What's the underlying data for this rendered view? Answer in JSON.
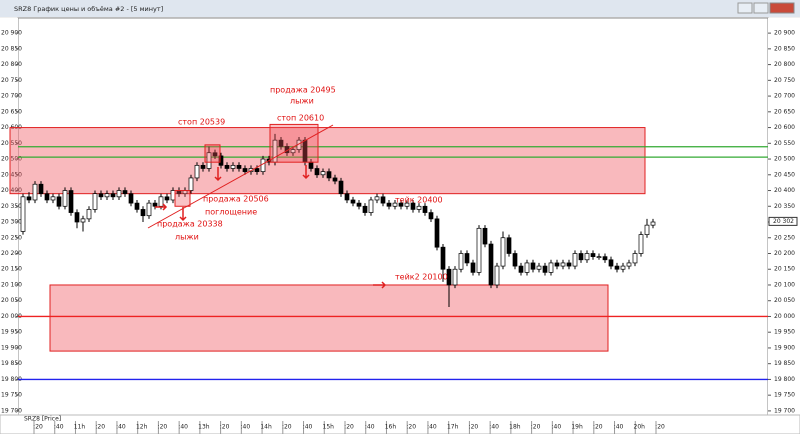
{
  "window_title": "SRZ8 График цены и объёма #2 - [5 минут]",
  "chart_data": {
    "type": "candlestick",
    "legend": "SRZ8 [Price]",
    "ylim": [
      19687,
      20948
    ],
    "yticks": [
      {
        "value": 19700,
        "label": "19 700"
      },
      {
        "value": 19750,
        "label": "19 750"
      },
      {
        "value": 19800,
        "label": "19 800"
      },
      {
        "value": 19850,
        "label": "19 850"
      },
      {
        "value": 19900,
        "label": "19 900"
      },
      {
        "value": 19950,
        "label": "19 950"
      },
      {
        "value": 20000,
        "label": "20 000"
      },
      {
        "value": 20050,
        "label": "20 050"
      },
      {
        "value": 20100,
        "label": "20 100"
      },
      {
        "value": 20150,
        "label": "20 150"
      },
      {
        "value": 20200,
        "label": "20 200"
      },
      {
        "value": 20250,
        "label": "20 250"
      },
      {
        "value": 20300,
        "label": "20 300"
      },
      {
        "value": 20350,
        "label": "20 350"
      },
      {
        "value": 20400,
        "label": "20 400"
      },
      {
        "value": 20450,
        "label": "20 450"
      },
      {
        "value": 20500,
        "label": "20 500"
      },
      {
        "value": 20550,
        "label": "20 550"
      },
      {
        "value": 20600,
        "label": "20 600"
      },
      {
        "value": 20650,
        "label": "20 650"
      },
      {
        "value": 20700,
        "label": "20 700"
      },
      {
        "value": 20750,
        "label": "20 750"
      },
      {
        "value": 20800,
        "label": "20 800"
      },
      {
        "value": 20850,
        "label": "20 850"
      },
      {
        "value": 20900,
        "label": "20 900"
      }
    ],
    "last_price": {
      "value": 20302,
      "label": "20 302"
    },
    "categories": [
      ":20",
      ":40",
      "11h",
      ":20",
      ":40",
      "12h",
      ":20",
      ":40",
      "13h",
      ":20",
      ":40",
      "14h",
      ":20",
      ":40",
      "15h",
      ":20",
      ":40",
      "16h",
      ":20",
      ":40",
      "17h",
      ":20",
      ":40",
      "18h",
      ":20",
      ":40",
      "19h",
      ":20",
      ":40",
      "20h",
      ":20"
    ],
    "candles": [
      [
        20270,
        20390,
        20260,
        20380
      ],
      [
        20380,
        20395,
        20360,
        20370
      ],
      [
        20370,
        20430,
        20360,
        20420
      ],
      [
        20420,
        20430,
        20380,
        20390
      ],
      [
        20390,
        20400,
        20360,
        20370
      ],
      [
        20370,
        20390,
        20360,
        20380
      ],
      [
        20380,
        20390,
        20340,
        20350
      ],
      [
        20350,
        20410,
        20340,
        20400
      ],
      [
        20400,
        20410,
        20320,
        20330
      ],
      [
        20330,
        20340,
        20280,
        20300
      ],
      [
        20300,
        20320,
        20270,
        20310
      ],
      [
        20310,
        20350,
        20300,
        20340
      ],
      [
        20340,
        20400,
        20330,
        20390
      ],
      [
        20390,
        20400,
        20370,
        20380
      ],
      [
        20380,
        20400,
        20370,
        20390
      ],
      [
        20390,
        20400,
        20370,
        20380
      ],
      [
        20380,
        20410,
        20370,
        20400
      ],
      [
        20400,
        20410,
        20380,
        20390
      ],
      [
        20390,
        20400,
        20350,
        20360
      ],
      [
        20360,
        20370,
        20330,
        20340
      ],
      [
        20340,
        20350,
        20300,
        20320
      ],
      [
        20320,
        20370,
        20310,
        20360
      ],
      [
        20360,
        20370,
        20340,
        20350
      ],
      [
        20350,
        20390,
        20340,
        20380
      ],
      [
        20380,
        20390,
        20360,
        20370
      ],
      [
        20370,
        20410,
        20360,
        20400
      ],
      [
        20400,
        20410,
        20380,
        20390
      ],
      [
        20390,
        20410,
        20380,
        20400
      ],
      [
        20400,
        20450,
        20390,
        20440
      ],
      [
        20440,
        20490,
        20430,
        20480
      ],
      [
        20480,
        20490,
        20460,
        20470
      ],
      [
        20470,
        20540,
        20460,
        20520
      ],
      [
        20520,
        20530,
        20500,
        20510
      ],
      [
        20510,
        20520,
        20470,
        20480
      ],
      [
        20480,
        20490,
        20460,
        20470
      ],
      [
        20470,
        20490,
        20460,
        20480
      ],
      [
        20480,
        20490,
        20460,
        20470
      ],
      [
        20470,
        20480,
        20450,
        20460
      ],
      [
        20460,
        20480,
        20450,
        20470
      ],
      [
        20470,
        20480,
        20450,
        20460
      ],
      [
        20460,
        20510,
        20450,
        20500
      ],
      [
        20500,
        20510,
        20480,
        20490
      ],
      [
        20490,
        20580,
        20480,
        20560
      ],
      [
        20560,
        20570,
        20530,
        20540
      ],
      [
        20540,
        20550,
        20510,
        20520
      ],
      [
        20520,
        20540,
        20510,
        20530
      ],
      [
        20530,
        20570,
        20520,
        20560
      ],
      [
        20560,
        20570,
        20480,
        20490
      ],
      [
        20490,
        20500,
        20460,
        20470
      ],
      [
        20470,
        20480,
        20440,
        20450
      ],
      [
        20450,
        20470,
        20440,
        20460
      ],
      [
        20460,
        20470,
        20430,
        20440
      ],
      [
        20440,
        20450,
        20420,
        20430
      ],
      [
        20430,
        20440,
        20380,
        20390
      ],
      [
        20390,
        20400,
        20360,
        20370
      ],
      [
        20370,
        20380,
        20350,
        20360
      ],
      [
        20360,
        20370,
        20340,
        20350
      ],
      [
        20350,
        20360,
        20320,
        20330
      ],
      [
        20330,
        20380,
        20320,
        20370
      ],
      [
        20370,
        20390,
        20360,
        20380
      ],
      [
        20380,
        20390,
        20350,
        20360
      ],
      [
        20360,
        20370,
        20340,
        20350
      ],
      [
        20350,
        20370,
        20340,
        20360
      ],
      [
        20360,
        20370,
        20340,
        20350
      ],
      [
        20350,
        20370,
        20340,
        20360
      ],
      [
        20360,
        20370,
        20330,
        20340
      ],
      [
        20340,
        20360,
        20330,
        20350
      ],
      [
        20350,
        20360,
        20320,
        20330
      ],
      [
        20330,
        20340,
        20300,
        20310
      ],
      [
        20310,
        20320,
        20210,
        20220
      ],
      [
        20220,
        20230,
        20110,
        20150
      ],
      [
        20150,
        20160,
        20030,
        20100
      ],
      [
        20100,
        20160,
        20090,
        20150
      ],
      [
        20150,
        20210,
        20140,
        20200
      ],
      [
        20200,
        20210,
        20160,
        20170
      ],
      [
        20170,
        20180,
        20130,
        20140
      ],
      [
        20140,
        20290,
        20130,
        20280
      ],
      [
        20280,
        20290,
        20220,
        20230
      ],
      [
        20230,
        20240,
        20090,
        20100
      ],
      [
        20100,
        20170,
        20090,
        20160
      ],
      [
        20160,
        20270,
        20150,
        20250
      ],
      [
        20250,
        20260,
        20190,
        20200
      ],
      [
        20200,
        20210,
        20150,
        20160
      ],
      [
        20160,
        20170,
        20130,
        20140
      ],
      [
        20140,
        20180,
        20130,
        20170
      ],
      [
        20170,
        20180,
        20140,
        20150
      ],
      [
        20150,
        20170,
        20140,
        20160
      ],
      [
        20160,
        20170,
        20130,
        20140
      ],
      [
        20140,
        20180,
        20130,
        20170
      ],
      [
        20170,
        20180,
        20150,
        20160
      ],
      [
        20160,
        20180,
        20150,
        20170
      ],
      [
        20170,
        20180,
        20150,
        20160
      ],
      [
        20160,
        20210,
        20150,
        20200
      ],
      [
        20200,
        20210,
        20170,
        20180
      ],
      [
        20180,
        20210,
        20170,
        20200
      ],
      [
        20200,
        20210,
        20180,
        20190
      ],
      [
        20190,
        20200,
        20180,
        20190
      ],
      [
        20190,
        20200,
        20170,
        20180
      ],
      [
        20180,
        20190,
        20150,
        20160
      ],
      [
        20160,
        20170,
        20140,
        20150
      ],
      [
        20150,
        20170,
        20140,
        20160
      ],
      [
        20160,
        20180,
        20150,
        20170
      ],
      [
        20170,
        20210,
        20160,
        20200
      ],
      [
        20200,
        20270,
        20190,
        20260
      ],
      [
        20260,
        20310,
        20250,
        20290
      ],
      [
        20290,
        20310,
        20280,
        20300
      ]
    ],
    "zones": [
      {
        "from": 20390,
        "to": 20600
      },
      {
        "from": 19890,
        "to": 20100
      }
    ],
    "levels": [
      {
        "value": 20539,
        "color": "#33aa33"
      },
      {
        "value": 20506,
        "color": "#33aa33"
      },
      {
        "value": 20000,
        "color": "#ee2222"
      },
      {
        "value": 19800,
        "color": "#2222ee"
      }
    ],
    "boxes": [
      {
        "from": 20350,
        "to": 20400
      },
      {
        "from": 20490,
        "to": 20545
      },
      {
        "from": 20490,
        "to": 20610
      }
    ],
    "annotations": [
      "стоп 20539",
      "продажа 20495",
      "лыжи",
      "стоп 20610",
      "продажа 20506",
      "поглощение",
      "продажа 20338",
      "лыжи",
      "тейк 20400",
      "тейк2  20100"
    ]
  }
}
